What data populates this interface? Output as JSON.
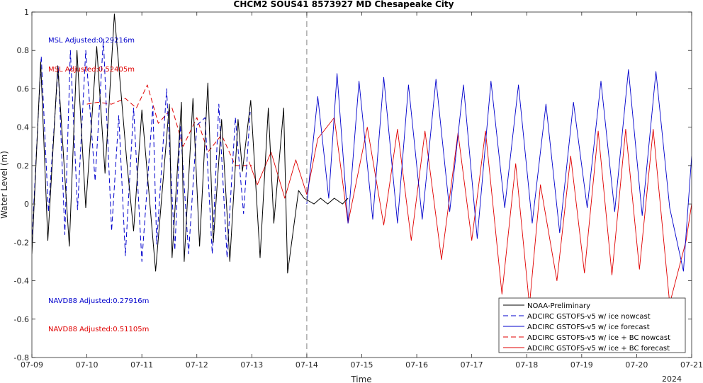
{
  "chart_data": {
    "type": "line",
    "title": "CHCM2 SOUS41 8573927 MD Chesapeake City",
    "xlabel": "Time",
    "ylabel": "Water Level (m)",
    "year_label": "2024",
    "ylim": [
      -0.8,
      1.0
    ],
    "xlim": [
      "07-09",
      "07-21"
    ],
    "x_ticks": [
      "07-09",
      "07-10",
      "07-11",
      "07-12",
      "07-13",
      "07-14",
      "07-15",
      "07-16",
      "07-17",
      "07-18",
      "07-19",
      "07-20",
      "07-21"
    ],
    "y_ticks": [
      "-0.8",
      "-0.6",
      "-0.4",
      "-0.2",
      "0",
      "0.2",
      "0.4",
      "0.6",
      "0.8",
      "1"
    ],
    "nowcast_forecast_boundary": "07-14",
    "grid": false,
    "legend_position": "bottom-right",
    "annotations": {
      "msl_blue": "MSL Adjusted:0.29216m",
      "msl_red": "MSL Adjusted:0.52405m",
      "navd_blue": "NAVD88 Adjusted:0.27916m",
      "navd_red": "NAVD88 Adjusted:0.51105m"
    },
    "colors": {
      "obs": "#000000",
      "blue": "#0000cc",
      "red": "#e00000",
      "boundary": "#808080"
    },
    "series": [
      {
        "name": "NOAA-Preliminary",
        "x_days": [
          0.0,
          0.16,
          0.29,
          0.47,
          0.68,
          0.82,
          0.98,
          1.18,
          1.33,
          1.5,
          1.73,
          1.85,
          2.0,
          2.25,
          2.5,
          2.55,
          2.72,
          2.77,
          2.93,
          3.05,
          3.2,
          3.3,
          3.45,
          3.6,
          3.75,
          3.83,
          3.98,
          4.15,
          4.3,
          4.4,
          4.58,
          4.65,
          4.85,
          4.95,
          5.13,
          5.25,
          5.38,
          5.5,
          5.65,
          5.75
        ],
        "y": [
          -0.26,
          0.74,
          -0.19,
          0.72,
          -0.22,
          0.8,
          -0.02,
          0.82,
          0.16,
          0.99,
          0.21,
          -0.14,
          0.49,
          -0.35,
          0.52,
          -0.28,
          0.53,
          -0.3,
          0.55,
          -0.22,
          0.63,
          -0.2,
          0.44,
          -0.3,
          0.44,
          0.17,
          0.54,
          -0.28,
          0.5,
          -0.1,
          0.5,
          -0.36,
          0.07,
          0.03,
          0.0,
          0.03,
          0.0,
          0.03,
          0.0,
          0.03
        ]
      },
      {
        "name": "ADCIRC GSTOFS-v5 w/ ice nowcast",
        "x_days": [
          0.0,
          0.17,
          0.3,
          0.48,
          0.6,
          0.7,
          0.83,
          0.98,
          1.15,
          1.3,
          1.45,
          1.58,
          1.7,
          1.85,
          2.0,
          2.2,
          2.27,
          2.45,
          2.6,
          2.7,
          2.85,
          3.0,
          3.15,
          3.28,
          3.4,
          3.55,
          3.7,
          3.85,
          3.97
        ],
        "y": [
          -0.2,
          0.77,
          -0.04,
          0.72,
          -0.16,
          0.8,
          -0.03,
          0.8,
          0.12,
          0.86,
          -0.14,
          0.46,
          -0.27,
          0.5,
          -0.3,
          0.51,
          -0.21,
          0.6,
          -0.24,
          0.41,
          -0.26,
          0.41,
          0.45,
          -0.26,
          0.52,
          -0.28,
          0.45,
          -0.05,
          0.48
        ]
      },
      {
        "name": "ADCIRC GSTOFS-v5 w/ ice forecast",
        "x_days": [
          5.0,
          5.2,
          5.4,
          5.55,
          5.75,
          5.95,
          6.2,
          6.4,
          6.65,
          6.85,
          7.1,
          7.35,
          7.6,
          7.85,
          8.1,
          8.35,
          8.6,
          8.85,
          9.1,
          9.35,
          9.6,
          9.85,
          10.1,
          10.35,
          10.6,
          10.85,
          11.1,
          11.35,
          11.6,
          11.85,
          12.0
        ],
        "y": [
          0.0,
          0.56,
          0.03,
          0.68,
          -0.1,
          0.64,
          -0.08,
          0.66,
          -0.1,
          0.62,
          -0.08,
          0.65,
          -0.04,
          0.62,
          -0.18,
          0.64,
          -0.02,
          0.62,
          -0.1,
          0.52,
          -0.15,
          0.53,
          -0.02,
          0.64,
          -0.04,
          0.7,
          -0.06,
          0.69,
          -0.02,
          -0.35,
          0.25
        ]
      },
      {
        "name": "ADCIRC GSTOFS-v5 w/ ice + BC nowcast",
        "x_days": [
          1.0,
          1.2,
          1.45,
          1.7,
          1.9,
          2.1,
          2.3,
          2.55,
          2.75,
          3.0,
          3.2,
          3.45,
          3.7,
          4.0
        ],
        "y": [
          0.52,
          0.53,
          0.52,
          0.55,
          0.5,
          0.62,
          0.42,
          0.5,
          0.3,
          0.45,
          0.27,
          0.36,
          0.2,
          0.2
        ]
      },
      {
        "name": "ADCIRC GSTOFS-v5 w/ ice + BC forecast",
        "x_days": [
          3.95,
          4.1,
          4.35,
          4.6,
          4.8,
          5.0,
          5.2,
          5.5,
          5.75,
          6.1,
          6.4,
          6.65,
          6.9,
          7.15,
          7.45,
          7.75,
          8.0,
          8.25,
          8.55,
          8.8,
          9.05,
          9.25,
          9.55,
          9.8,
          10.05,
          10.3,
          10.55,
          10.8,
          11.05,
          11.3,
          11.6,
          11.9,
          12.0
        ],
        "y": [
          0.22,
          0.1,
          0.27,
          0.03,
          0.23,
          0.05,
          0.34,
          0.45,
          -0.1,
          0.4,
          -0.11,
          0.39,
          -0.19,
          0.38,
          -0.29,
          0.37,
          -0.19,
          0.38,
          -0.47,
          0.21,
          -0.53,
          0.1,
          -0.4,
          0.25,
          -0.36,
          0.38,
          -0.37,
          0.39,
          -0.34,
          0.39,
          -0.52,
          -0.19,
          0.0
        ]
      }
    ]
  }
}
